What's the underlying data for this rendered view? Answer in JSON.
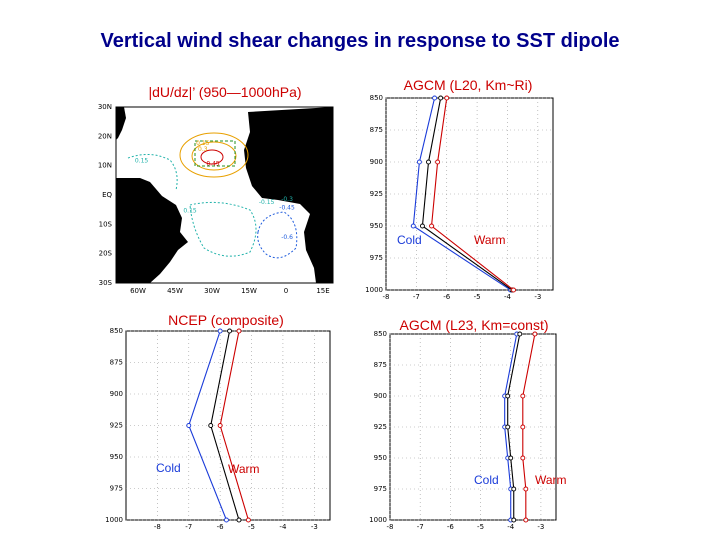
{
  "slide": {
    "title": "Vertical wind shear changes in response to SST dipole"
  },
  "colors": {
    "title": "#00008b",
    "cold": "#1a3bd9",
    "warm": "#cc0000",
    "composite": "#000000",
    "panel_title": "#cc0000"
  },
  "chart_data": [
    {
      "type": "heatmap",
      "title": "|dU/dz|’ (950—1000hPa)",
      "x_ticks": [
        "60W",
        "45W",
        "30W",
        "15W",
        "0",
        "15E"
      ],
      "y_ticks": [
        "30N",
        "20N",
        "10N",
        "EQ",
        "10S",
        "20S",
        "30S"
      ],
      "xlim": [
        -67,
        18
      ],
      "ylim": [
        -30,
        30
      ],
      "contour_labels": [
        {
          "text": "0.15",
          "color": "#e8a000",
          "lon": -33,
          "lat": 17
        },
        {
          "text": "0.3",
          "color": "#e8a000",
          "lon": -33,
          "lat": 15
        },
        {
          "text": "0.45",
          "color": "#cc0000",
          "lon": -29,
          "lat": 10
        },
        {
          "text": "0.15",
          "color": "#20b2aa",
          "lon": -57,
          "lat": 11
        },
        {
          "text": "0.15",
          "color": "#20b2aa",
          "lon": -38,
          "lat": -6
        },
        {
          "text": "-0.15",
          "color": "#20b2aa",
          "lon": -8,
          "lat": -3
        },
        {
          "text": "-0.3",
          "color": "#20b2aa",
          "lon": 0,
          "lat": -2
        },
        {
          "text": "-0.45",
          "color": "#1e5bdc",
          "lon": 0,
          "lat": -5
        },
        {
          "text": "-0.6",
          "color": "#1e5bdc",
          "lon": 0,
          "lat": -15
        }
      ]
    },
    {
      "type": "line",
      "title": "AGCM (L20, Km~Ri)",
      "x_ticks": [
        "-8",
        "-7",
        "-6",
        "-5",
        "-4",
        "-3"
      ],
      "y_ticks": [
        "850",
        "875",
        "900",
        "925",
        "950",
        "975",
        "1000"
      ],
      "xlim": [
        -8,
        -2.5
      ],
      "ylim": [
        850,
        1000
      ],
      "series": [
        {
          "name": "Cold",
          "color": "#1a3bd9",
          "points": [
            [
              -6.4,
              850
            ],
            [
              -6.9,
              900
            ],
            [
              -7.1,
              950
            ],
            [
              -3.9,
              1000
            ]
          ]
        },
        {
          "name": "",
          "color": "#000000",
          "points": [
            [
              -6.2,
              850
            ],
            [
              -6.6,
              900
            ],
            [
              -6.8,
              950
            ],
            [
              -3.85,
              1000
            ]
          ]
        },
        {
          "name": "Warm",
          "color": "#cc0000",
          "points": [
            [
              -6.0,
              850
            ],
            [
              -6.3,
              900
            ],
            [
              -6.5,
              950
            ],
            [
              -3.8,
              1000
            ]
          ]
        }
      ],
      "labels": [
        {
          "text": "Cold",
          "series": "Cold"
        },
        {
          "text": "Warm",
          "series": "Warm"
        }
      ]
    },
    {
      "type": "line",
      "title": "NCEP (composite)",
      "x_ticks": [
        "-8",
        "-7",
        "-6",
        "-5",
        "-4",
        "-3"
      ],
      "y_ticks": [
        "850",
        "875",
        "900",
        "925",
        "950",
        "975",
        "1000"
      ],
      "xlim": [
        -9,
        -2.5
      ],
      "ylim": [
        850,
        1000
      ],
      "series": [
        {
          "name": "Cold",
          "color": "#1a3bd9",
          "points": [
            [
              -6.0,
              850
            ],
            [
              -7.0,
              925
            ],
            [
              -5.8,
              1000
            ]
          ]
        },
        {
          "name": "",
          "color": "#000000",
          "points": [
            [
              -5.7,
              850
            ],
            [
              -6.3,
              925
            ],
            [
              -5.4,
              1000
            ]
          ]
        },
        {
          "name": "Warm",
          "color": "#cc0000",
          "points": [
            [
              -5.4,
              850
            ],
            [
              -6.0,
              925
            ],
            [
              -5.1,
              1000
            ]
          ]
        }
      ],
      "labels": [
        {
          "text": "Cold",
          "series": "Cold"
        },
        {
          "text": "Warm",
          "series": "Warm"
        }
      ]
    },
    {
      "type": "line",
      "title": "AGCM (L23, Km=const)",
      "x_ticks": [
        "-8",
        "-7",
        "-6",
        "-5",
        "-4",
        "-3"
      ],
      "y_ticks": [
        "850",
        "875",
        "900",
        "925",
        "950",
        "975",
        "1000"
      ],
      "xlim": [
        -8,
        -2.5
      ],
      "ylim": [
        850,
        1000
      ],
      "series": [
        {
          "name": "Cold",
          "color": "#1a3bd9",
          "points": [
            [
              -3.8,
              850
            ],
            [
              -4.2,
              900
            ],
            [
              -4.2,
              925
            ],
            [
              -4.1,
              950
            ],
            [
              -4.0,
              975
            ],
            [
              -4.0,
              1000
            ]
          ]
        },
        {
          "name": "",
          "color": "#000000",
          "points": [
            [
              -3.7,
              850
            ],
            [
              -4.1,
              900
            ],
            [
              -4.1,
              925
            ],
            [
              -4.0,
              950
            ],
            [
              -3.9,
              975
            ],
            [
              -3.9,
              1000
            ]
          ]
        },
        {
          "name": "Warm",
          "color": "#cc0000",
          "points": [
            [
              -3.2,
              850
            ],
            [
              -3.6,
              900
            ],
            [
              -3.6,
              925
            ],
            [
              -3.6,
              950
            ],
            [
              -3.5,
              975
            ],
            [
              -3.5,
              1000
            ]
          ]
        }
      ],
      "labels": [
        {
          "text": "Cold",
          "series": "Cold"
        },
        {
          "text": "Warm",
          "series": "Warm"
        }
      ]
    }
  ]
}
